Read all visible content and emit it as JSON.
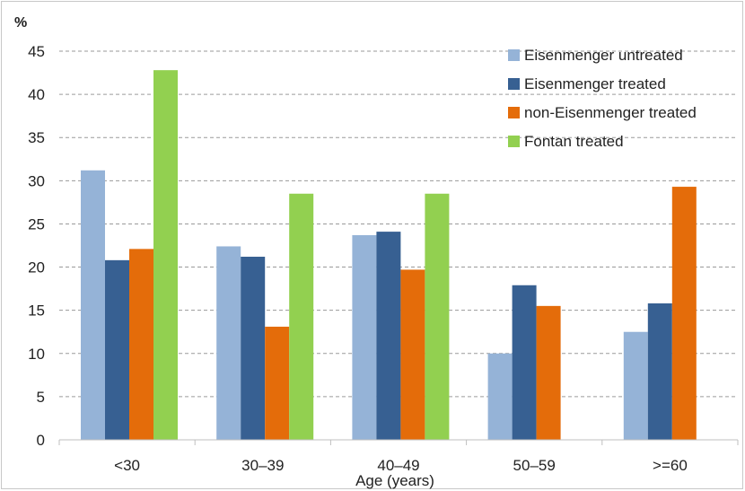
{
  "chart_data": {
    "type": "bar",
    "title": "",
    "ylabel": "%",
    "xlabel": "Age (years)",
    "ylim": [
      0,
      45
    ],
    "yticks": [
      0,
      5,
      10,
      15,
      20,
      25,
      30,
      35,
      40,
      45
    ],
    "grid": true,
    "legend_position": "top-right",
    "categories": [
      "<30",
      "30–39",
      "40–49",
      "50–59",
      ">=60"
    ],
    "series": [
      {
        "name": "Eisenmenger untreated",
        "color": "#95b3d7",
        "values": [
          31.2,
          22.4,
          23.7,
          10.0,
          12.5
        ]
      },
      {
        "name": "Eisenmenger treated",
        "color": "#376092",
        "values": [
          20.8,
          21.2,
          24.1,
          17.9,
          15.8
        ]
      },
      {
        "name": "non-Eisenmenger treated",
        "color": "#e46c0a",
        "values": [
          22.1,
          13.1,
          19.7,
          15.5,
          29.3
        ]
      },
      {
        "name": "Fontan treated",
        "color": "#92d050",
        "values": [
          42.8,
          28.5,
          28.5,
          null,
          null
        ]
      }
    ]
  }
}
